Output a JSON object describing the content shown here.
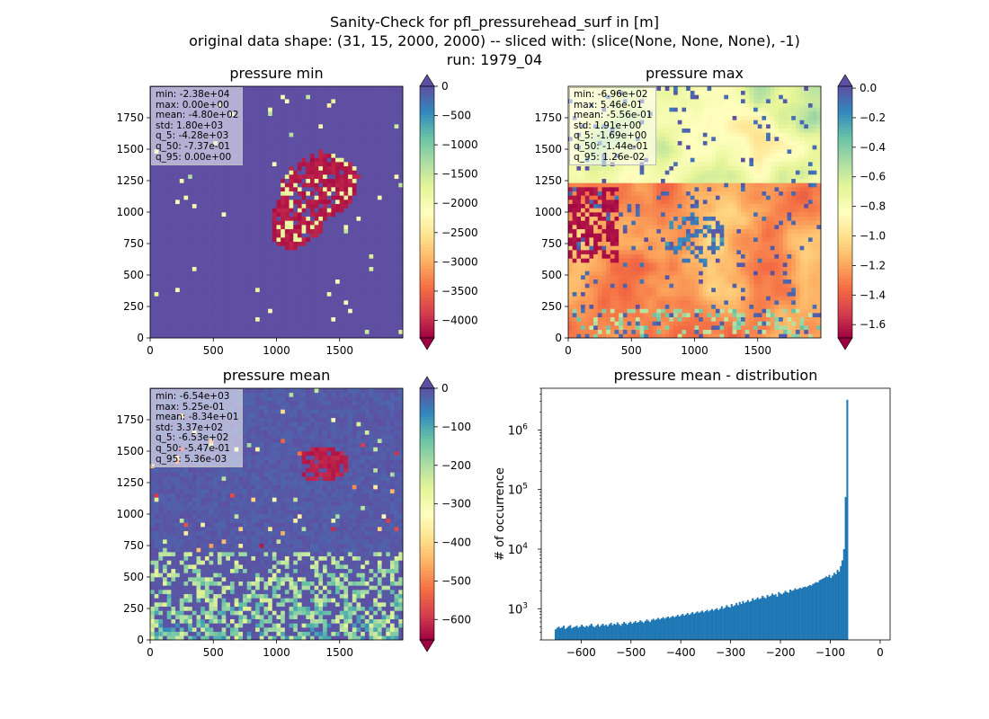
{
  "suptitle": {
    "line1": "Sanity-Check for pfl_pressurehead_surf in [m]",
    "line2": "original data shape: (31, 15, 2000, 2000) -- sliced with: (slice(None, None, None), -1)",
    "line3": "run: 1979_04"
  },
  "chart_data": [
    {
      "type": "heatmap",
      "title": "pressure min",
      "colormap": "Spectral",
      "xlim": [
        0,
        2000
      ],
      "ylim": [
        0,
        2000
      ],
      "xticks": [
        0,
        500,
        1000,
        1500
      ],
      "yticks": [
        0,
        250,
        500,
        750,
        1000,
        1250,
        1500,
        1750
      ],
      "colorbar": {
        "range": [
          -4300,
          0
        ],
        "ticks": [
          0,
          -500,
          -1000,
          -1500,
          -2000,
          -2500,
          -3000,
          -3500,
          -4000
        ],
        "extend": "both"
      },
      "stats": [
        "min: -2.38e+04",
        "max: 0.00e+00",
        "mean: -4.80e+02",
        "std: 1.80e+03",
        "q_5: -4.28e+03",
        "q_50: -7.37e-01",
        "q_95: 0.00e+00"
      ]
    },
    {
      "type": "heatmap",
      "title": "pressure max",
      "colormap": "Spectral",
      "xlim": [
        0,
        2000
      ],
      "ylim": [
        0,
        2000
      ],
      "xticks": [
        0,
        500,
        1000,
        1500
      ],
      "yticks": [
        0,
        250,
        500,
        750,
        1000,
        1250,
        1500,
        1750
      ],
      "colorbar": {
        "range": [
          -1.69,
          0.0126
        ],
        "ticks": [
          0.0,
          -0.2,
          -0.4,
          -0.6,
          -0.8,
          -1.0,
          -1.2,
          -1.4,
          -1.6
        ],
        "tick_labels": [
          "0.0",
          "−0.2",
          "−0.4",
          "−0.6",
          "−0.8",
          "−1.0",
          "−1.2",
          "−1.4",
          "−1.6"
        ],
        "extend": "both"
      },
      "stats": [
        "min: -6.96e+02",
        "max: 5.46e-01",
        "mean: -5.56e-01",
        "std: 1.91e+00",
        "q_5: -1.69e+00",
        "q_50: -1.44e-01",
        "q_95: 1.26e-02"
      ]
    },
    {
      "type": "heatmap",
      "title": "pressure mean",
      "colormap": "Spectral",
      "xlim": [
        0,
        2000
      ],
      "ylim": [
        0,
        2000
      ],
      "xticks": [
        0,
        500,
        1000,
        1500
      ],
      "yticks": [
        0,
        250,
        500,
        750,
        1000,
        1250,
        1500,
        1750
      ],
      "colorbar": {
        "range": [
          -653,
          0.00536
        ],
        "ticks": [
          0,
          -100,
          -200,
          -300,
          -400,
          -500,
          -600
        ],
        "extend": "both"
      },
      "stats": [
        "min: -6.54e+03",
        "max: 5.25e-01",
        "mean: -8.34e+01",
        "std: 3.37e+02",
        "q_5: -6.53e+02",
        "q_50: -5.47e-01",
        "q_95: 5.36e-03"
      ]
    },
    {
      "type": "bar",
      "title": "pressure mean - distribution",
      "ylabel": "# of occurrence",
      "xlabel": "",
      "yscale": "log",
      "xlim": [
        -680,
        20
      ],
      "ylim": [
        300,
        5000000
      ],
      "xticks": [
        -600,
        -500,
        -400,
        -300,
        -200,
        -100,
        0
      ],
      "xtick_labels": [
        "−600",
        "−500",
        "−400",
        "−300",
        "−200",
        "−100",
        "0"
      ],
      "yticks": [
        1000,
        10000,
        100000,
        1000000
      ],
      "color": "#1f77b4",
      "bin_start": -653,
      "bin_width": 3.27,
      "values": [
        450,
        480,
        500,
        470,
        490,
        520,
        460,
        480,
        510,
        530,
        470,
        490,
        500,
        520,
        480,
        500,
        540,
        510,
        490,
        520,
        500,
        530,
        560,
        510,
        490,
        520,
        550,
        500,
        530,
        560,
        520,
        540,
        510,
        550,
        580,
        530,
        560,
        540,
        590,
        550,
        520,
        560,
        600,
        570,
        540,
        580,
        610,
        560,
        590,
        620,
        580,
        600,
        640,
        610,
        580,
        620,
        660,
        630,
        600,
        650,
        680,
        640,
        670,
        700,
        660,
        690,
        720,
        680,
        710,
        740,
        700,
        730,
        760,
        720,
        750,
        790,
        740,
        780,
        820,
        770,
        800,
        850,
        790,
        830,
        880,
        820,
        860,
        900,
        850,
        890,
        930,
        870,
        910,
        960,
        900,
        940,
        990,
        930,
        980,
        1020,
        950,
        1000,
        1100,
        1000,
        1050,
        1150,
        1080,
        1050,
        1200,
        1100,
        1150,
        1250,
        1150,
        1300,
        1200,
        1350,
        1250,
        1300,
        1400,
        1300,
        1350,
        1500,
        1400,
        1450,
        1550,
        1450,
        1500,
        1650,
        1550,
        1500,
        1700,
        1600,
        1650,
        1800,
        1700,
        1750,
        1600,
        1900,
        1800,
        1750,
        1850,
        2000,
        1900,
        1850,
        2100,
        2000,
        2050,
        2200,
        2100,
        2150,
        2250,
        2200,
        2300,
        2350,
        2300,
        2400,
        2500,
        2450,
        2600,
        2700,
        2800,
        2750,
        3000,
        3100,
        3200,
        3300,
        3500,
        3400,
        3700,
        3300,
        3600,
        4000,
        3800,
        4500,
        4200,
        5200,
        6500,
        10000,
        75000,
        3200000
      ]
    }
  ]
}
